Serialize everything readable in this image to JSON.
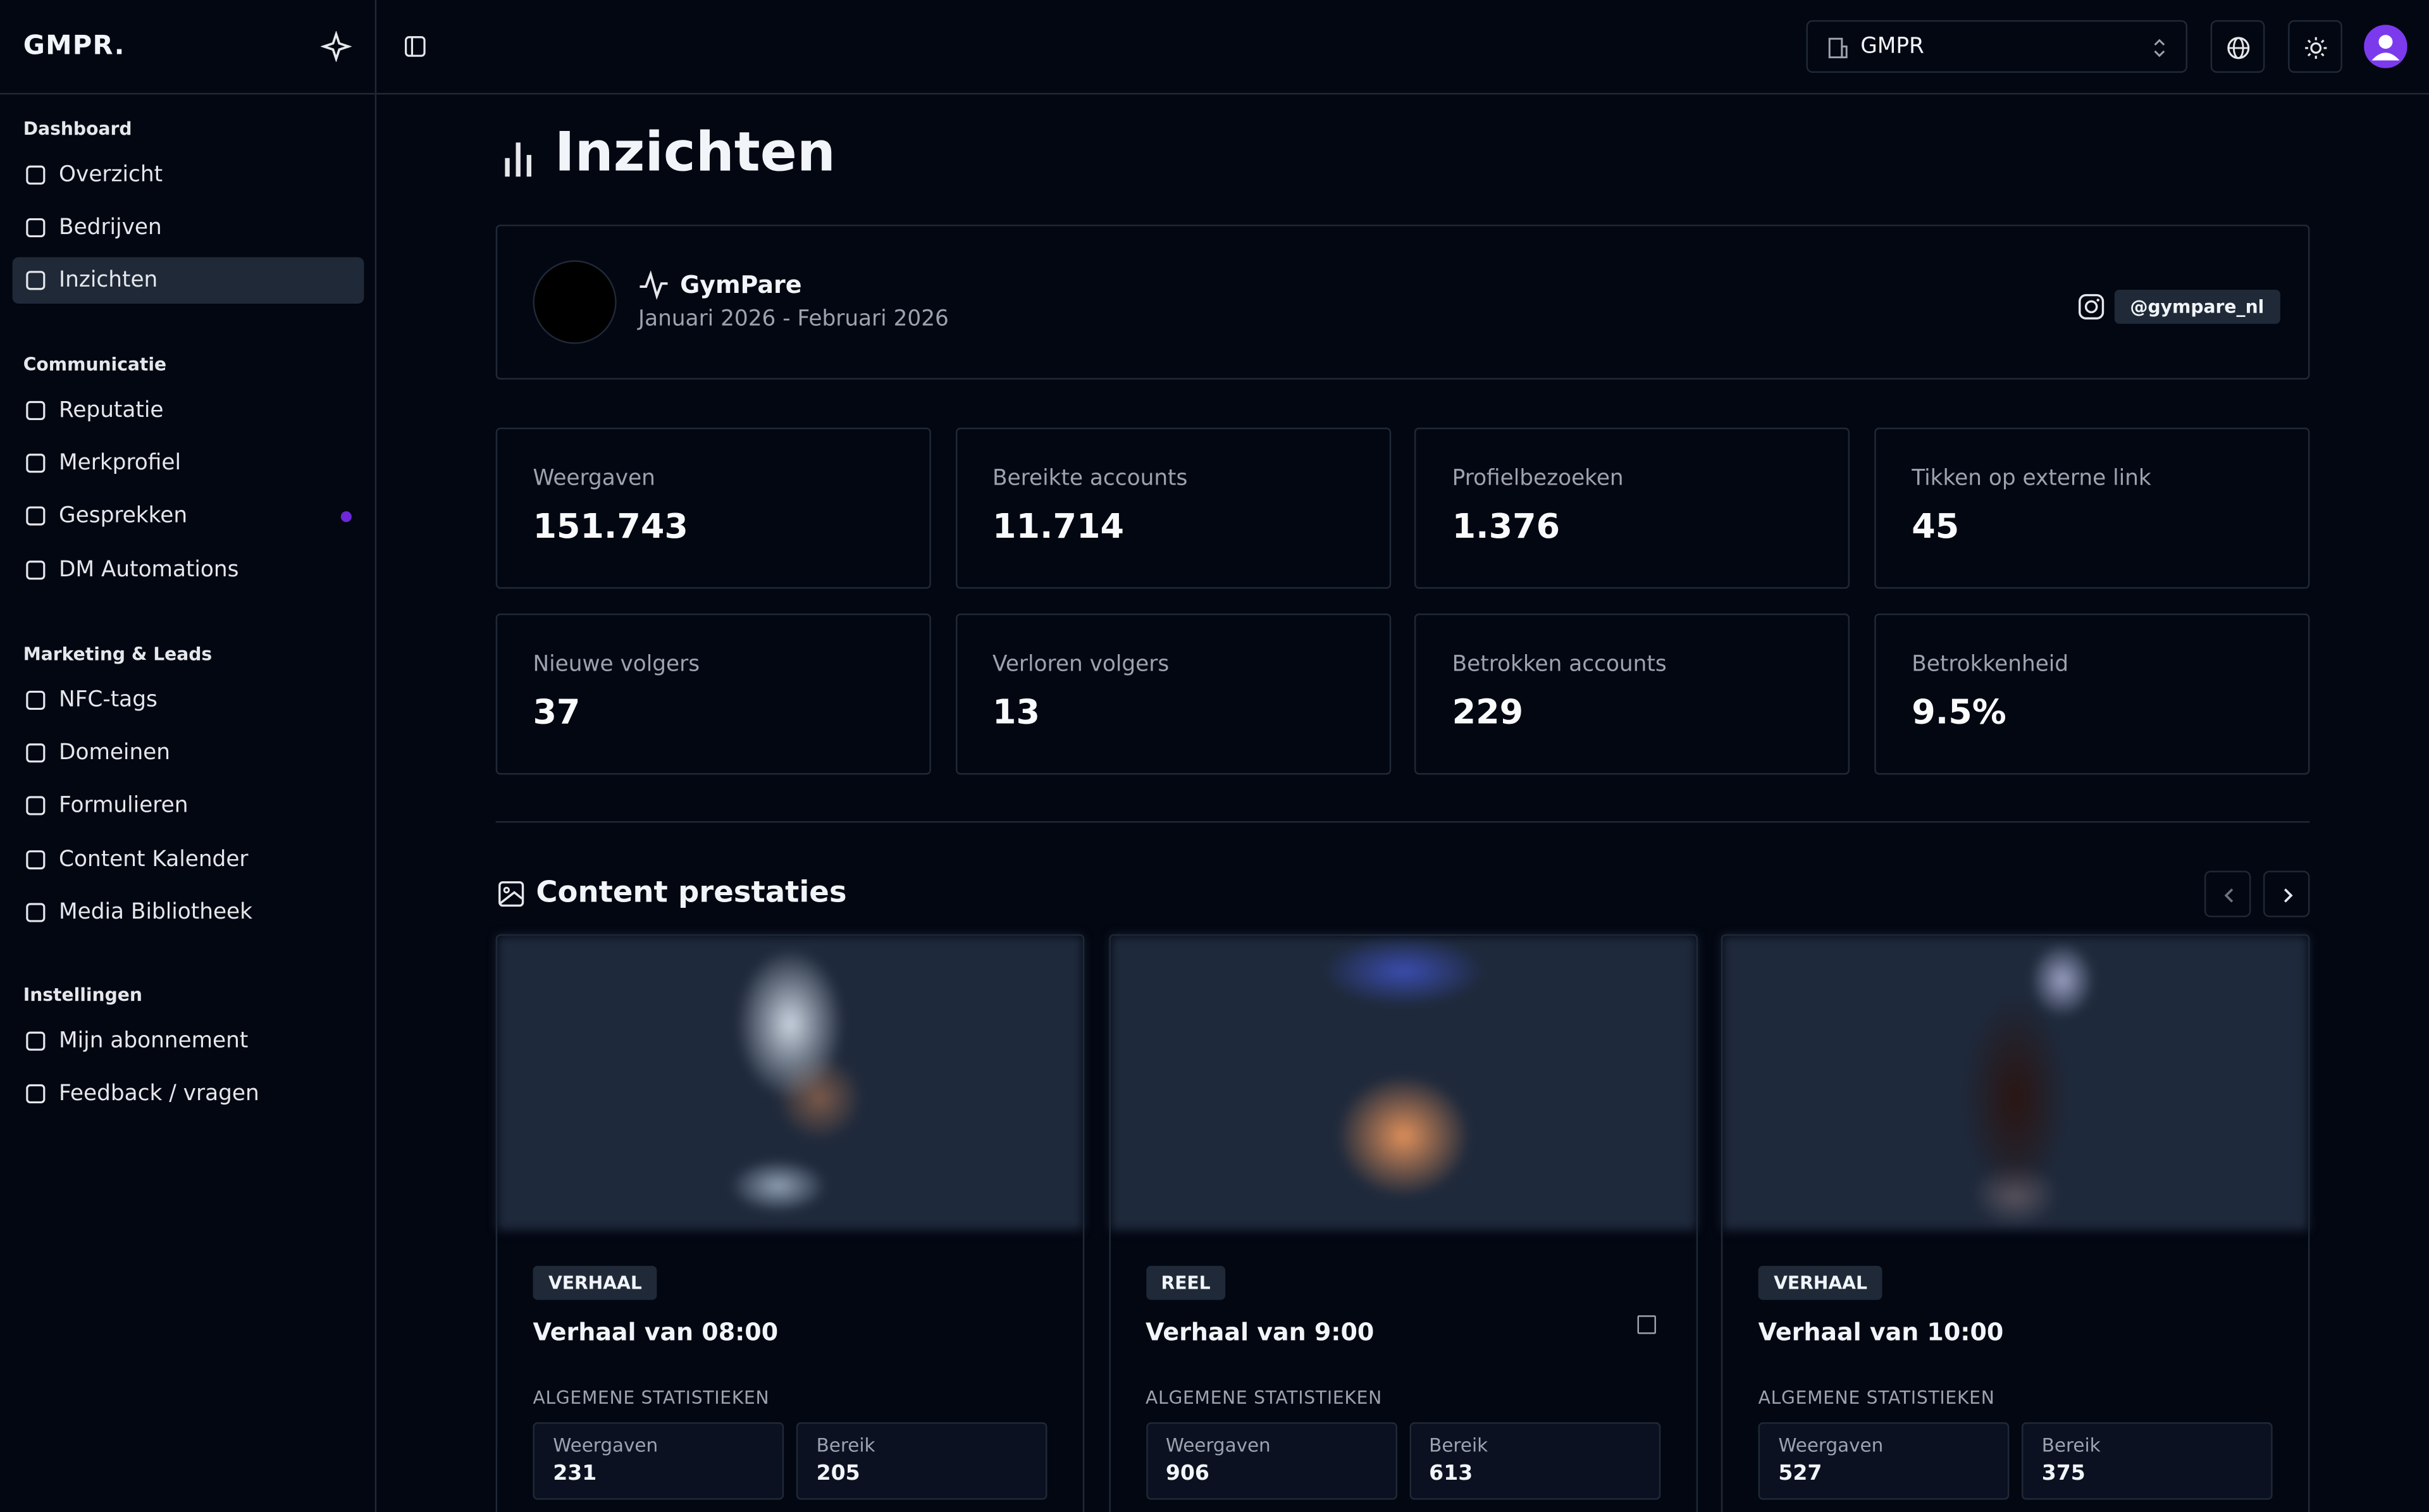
{
  "sidebar": {
    "logo": "GMPR.",
    "sections": [
      {
        "title": "Dashboard",
        "items": [
          "Overzicht",
          "Bedrijven",
          "Inzichten"
        ]
      },
      {
        "title": "Communicatie",
        "items": [
          "Reputatie",
          "Merkprofiel",
          "Gesprekken",
          "DM Automations"
        ]
      },
      {
        "title": "Marketing & Leads",
        "items": [
          "NFC-tags",
          "Domeinen",
          "Formulieren",
          "Content Kalender",
          "Media Bibliotheek"
        ]
      },
      {
        "title": "Instellingen",
        "items": [
          "Mijn abonnement",
          "Feedback / vragen"
        ]
      }
    ]
  },
  "header": {
    "organization": "GMPR"
  },
  "page": {
    "title": "Inzichten",
    "profile": {
      "name": "GymPare",
      "period": "Januari 2026 - Februari 2026",
      "handle": "@gympare_nl"
    },
    "stats": [
      {
        "label": "Weergaven",
        "value": "151.743"
      },
      {
        "label": "Bereikte accounts",
        "value": "11.714"
      },
      {
        "label": "Profielbezoeken",
        "value": "1.376"
      },
      {
        "label": "Tikken op externe link",
        "value": "45"
      },
      {
        "label": "Nieuwe volgers",
        "value": "37"
      },
      {
        "label": "Verloren volgers",
        "value": "13"
      },
      {
        "label": "Betrokken accounts",
        "value": "229"
      },
      {
        "label": "Betrokkenheid",
        "value": "9.5%"
      }
    ],
    "content": {
      "title": "Content prestaties",
      "posts": [
        {
          "type": "VERHAAL",
          "title": "Verhaal van 08:00",
          "section": "ALGEMENE STATISTIEKEN",
          "metrics": [
            {
              "label": "Weergaven",
              "value": "231"
            },
            {
              "label": "Bereik",
              "value": "205"
            }
          ]
        },
        {
          "type": "REEL",
          "title": "Verhaal van 9:00",
          "section": "ALGEMENE STATISTIEKEN",
          "metrics": [
            {
              "label": "Weergaven",
              "value": "906"
            },
            {
              "label": "Bereik",
              "value": "613"
            }
          ]
        },
        {
          "type": "VERHAAL",
          "title": "Verhaal van 10:00",
          "section": "ALGEMENE STATISTIEKEN",
          "metrics": [
            {
              "label": "Weergaven",
              "value": "527"
            },
            {
              "label": "Bereik",
              "value": "375"
            }
          ]
        }
      ]
    }
  }
}
